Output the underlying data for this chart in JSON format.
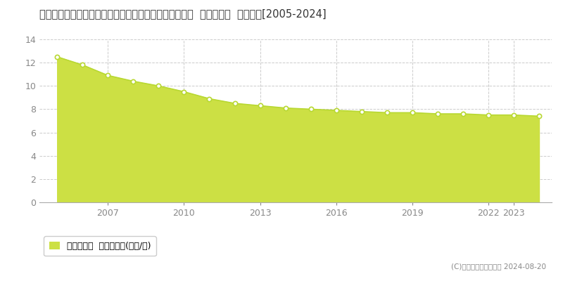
{
  "title": "茨城県結城郡八千代町大字菅谷字西根曽１１８２番５外  基準地価格  地価推移[2005-2024]",
  "years": [
    2005,
    2006,
    2007,
    2008,
    2009,
    2010,
    2011,
    2012,
    2013,
    2014,
    2015,
    2016,
    2017,
    2018,
    2019,
    2020,
    2021,
    2022,
    2023,
    2024
  ],
  "values": [
    12.5,
    11.8,
    10.9,
    10.4,
    10.0,
    9.5,
    8.9,
    8.5,
    8.3,
    8.1,
    8.0,
    7.9,
    7.8,
    7.7,
    7.7,
    7.6,
    7.6,
    7.5,
    7.5,
    7.4
  ],
  "line_color": "#b8d832",
  "fill_color": "#cce044",
  "marker_facecolor": "#ffffff",
  "marker_edgecolor": "#b8d832",
  "bg_color": "#ffffff",
  "plot_bg_color": "#ffffff",
  "grid_color": "#cccccc",
  "ylim": [
    0,
    14
  ],
  "yticks": [
    0,
    2,
    4,
    6,
    8,
    10,
    12,
    14
  ],
  "x_tick_positions": [
    2007,
    2010,
    2013,
    2016,
    2019,
    2022,
    2023
  ],
  "xlim_left": 2004.3,
  "xlim_right": 2024.5,
  "legend_label": "基準地価格  平均坪単価(万円/坪)",
  "copyright_text": "(C)土地価格ドットコム 2024-08-20",
  "title_fontsize": 10.5,
  "tick_fontsize": 9,
  "legend_fontsize": 9,
  "copyright_fontsize": 7.5
}
